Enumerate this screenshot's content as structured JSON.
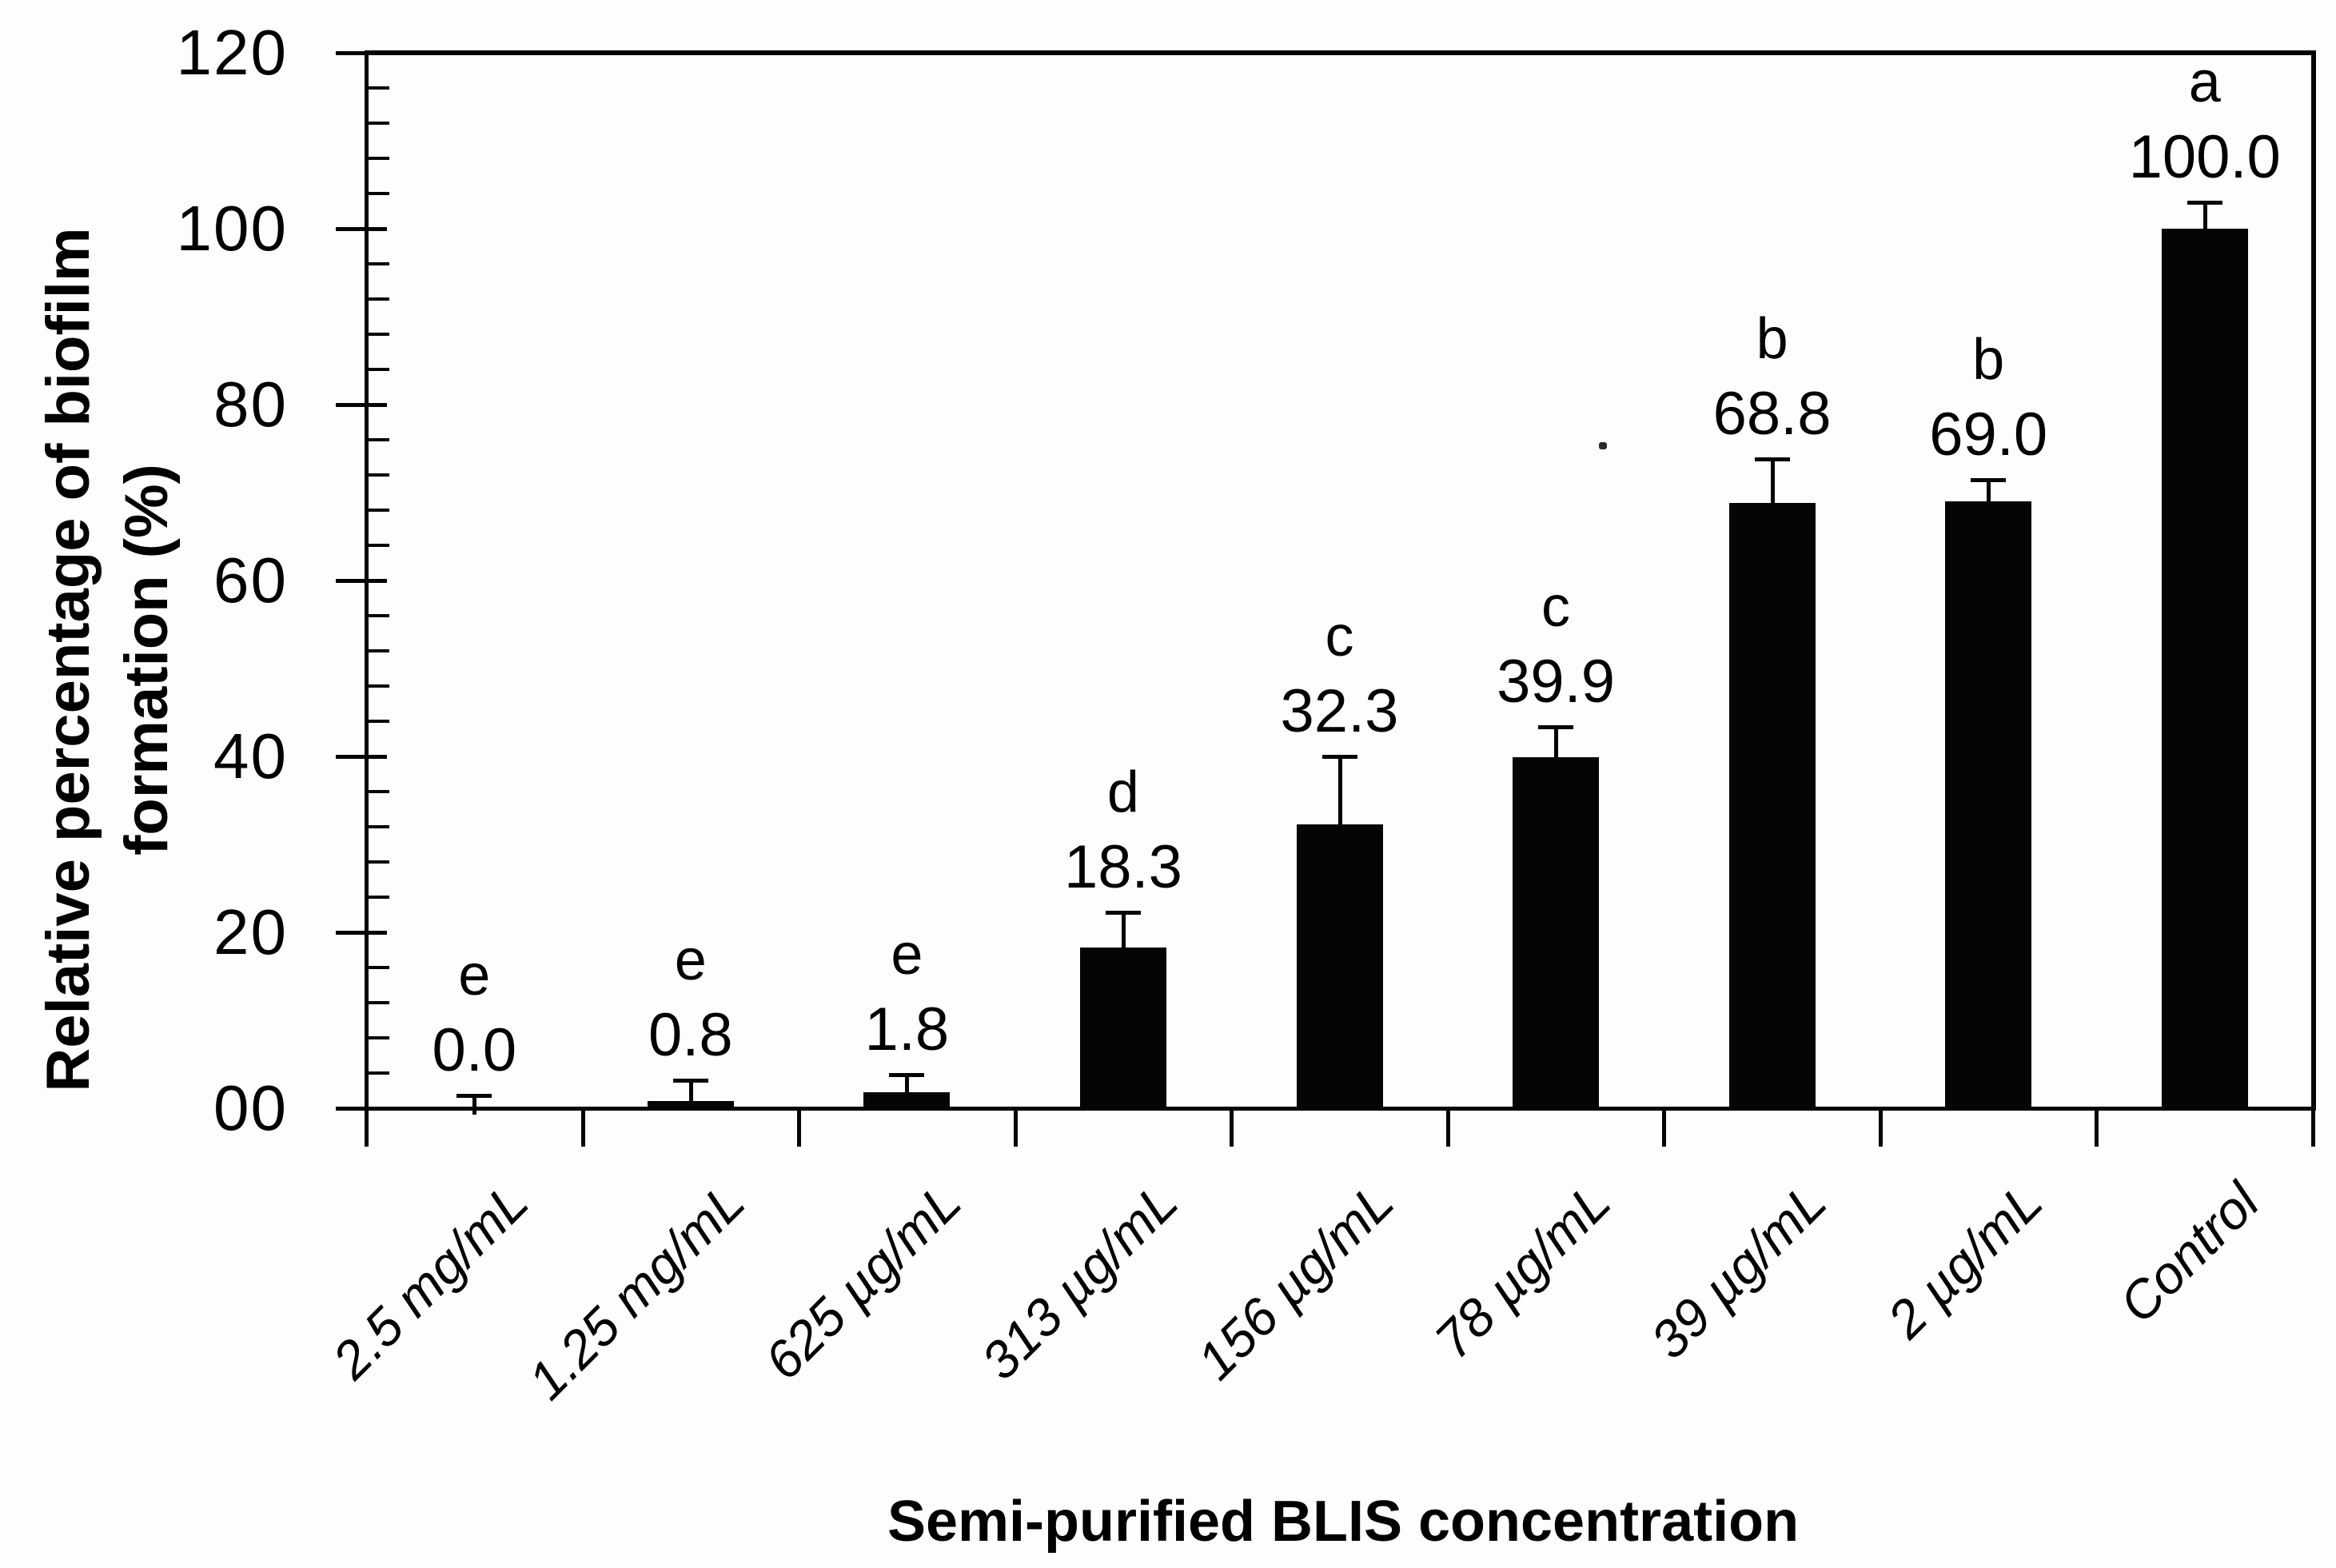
{
  "figure": {
    "background": "#fdfdfc",
    "ink_color": "#050505"
  },
  "chart_data": {
    "type": "bar",
    "title": "",
    "xlabel": "Semi-purified BLIS concentration",
    "ylabel": "Relative percentage of biofilm formation (%)",
    "ylabel_lines": [
      "Relative percentage of biofilm",
      "formation (%)"
    ],
    "categories": [
      "2.5 mg/mL",
      "1.25 mg/mL",
      "625 µg/mL",
      "313 µg/mL",
      "156 µg/mL",
      "78 µg/mL",
      "39 µg/mL",
      "2 µg/mL",
      "Control"
    ],
    "values": [
      0.0,
      0.8,
      1.8,
      18.3,
      32.3,
      39.9,
      68.8,
      69.0,
      100.0
    ],
    "value_labels": [
      "0.0",
      "0.8",
      "1.8",
      "18.3",
      "32.3",
      "39.9",
      "68.8",
      "69.0",
      "100.0"
    ],
    "error_upper": [
      1.5,
      2.4,
      2.0,
      4.0,
      7.7,
      3.5,
      5.0,
      2.5,
      3.0
    ],
    "sig_letters": [
      "e",
      "e",
      "e",
      "d",
      "c",
      "c",
      "b",
      "b",
      "a"
    ],
    "ylim": [
      0,
      120
    ],
    "y_major_ticks": [
      0,
      20,
      40,
      60,
      80,
      100,
      120
    ],
    "y_tick_labels": [
      "00",
      "20",
      "40",
      "60",
      "80",
      "100",
      "120"
    ],
    "y_minor_step": 4,
    "bar_color": "#050505",
    "grid": false,
    "legend": null,
    "error_bars": "upper-only",
    "plot_border": "top and right box lines",
    "x_label_rotation_deg": -45,
    "x_label_style": "italic"
  }
}
